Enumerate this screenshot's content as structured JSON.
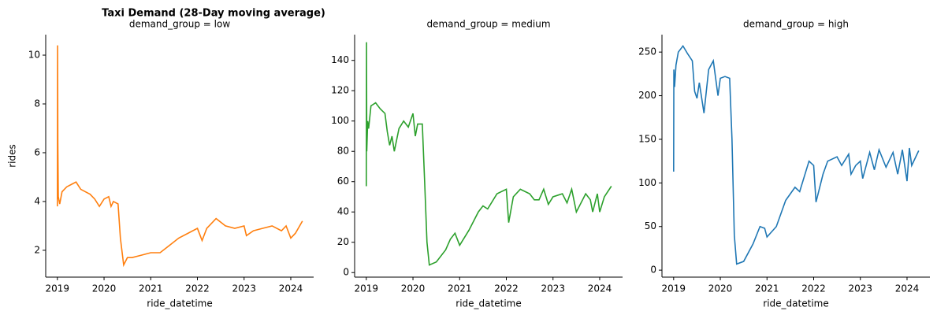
{
  "title": "Taxi Demand (28-Day moving average)",
  "chart_data": [
    {
      "type": "line",
      "title": "demand_group = low",
      "xlabel": "ride_datetime",
      "ylabel": "rides",
      "color": "#ff7f0e",
      "x": [
        2019.0,
        2019.005,
        2019.01,
        2019.02,
        2019.05,
        2019.1,
        2019.2,
        2019.3,
        2019.4,
        2019.5,
        2019.6,
        2019.7,
        2019.8,
        2019.9,
        2020.0,
        2020.1,
        2020.15,
        2020.2,
        2020.3,
        2020.35,
        2020.42,
        2020.5,
        2020.6,
        2020.8,
        2021.0,
        2021.2,
        2021.4,
        2021.6,
        2021.8,
        2022.0,
        2022.1,
        2022.2,
        2022.4,
        2022.6,
        2022.8,
        2023.0,
        2023.05,
        2023.2,
        2023.4,
        2023.6,
        2023.8,
        2023.9,
        2024.0,
        2024.1,
        2024.25
      ],
      "values": [
        3.8,
        10.4,
        6.4,
        4.2,
        3.9,
        4.4,
        4.6,
        4.7,
        4.8,
        4.5,
        4.4,
        4.3,
        4.1,
        3.8,
        4.1,
        4.2,
        3.8,
        4.0,
        3.9,
        2.5,
        1.4,
        1.7,
        1.7,
        1.8,
        1.9,
        1.9,
        2.2,
        2.5,
        2.7,
        2.9,
        2.4,
        2.9,
        3.3,
        3.0,
        2.9,
        3.0,
        2.6,
        2.8,
        2.9,
        3.0,
        2.8,
        3.0,
        2.5,
        2.7,
        3.2
      ],
      "xlim": [
        2018.75,
        2024.49
      ],
      "xticks": [
        2019,
        2020,
        2021,
        2022,
        2023,
        2024
      ],
      "ylim": [
        0.9,
        10.84
      ],
      "yticks": [
        2,
        4,
        6,
        8,
        10
      ]
    },
    {
      "type": "line",
      "title": "demand_group = medium",
      "xlabel": "ride_datetime",
      "color": "#2ca02c",
      "x": [
        2019.0,
        2019.005,
        2019.01,
        2019.03,
        2019.05,
        2019.1,
        2019.2,
        2019.3,
        2019.4,
        2019.45,
        2019.5,
        2019.55,
        2019.6,
        2019.7,
        2019.8,
        2019.9,
        2020.0,
        2020.05,
        2020.1,
        2020.2,
        2020.25,
        2020.3,
        2020.35,
        2020.5,
        2020.7,
        2020.8,
        2020.9,
        2021.0,
        2021.2,
        2021.4,
        2021.5,
        2021.6,
        2021.8,
        2022.0,
        2022.05,
        2022.15,
        2022.3,
        2022.5,
        2022.6,
        2022.7,
        2022.8,
        2022.9,
        2023.0,
        2023.2,
        2023.3,
        2023.4,
        2023.5,
        2023.7,
        2023.8,
        2023.85,
        2023.95,
        2024.0,
        2024.1,
        2024.25
      ],
      "values": [
        57,
        152,
        80,
        100,
        95,
        110,
        112,
        108,
        105,
        93,
        84,
        90,
        80,
        95,
        100,
        96,
        105,
        90,
        98,
        98,
        60,
        20,
        5,
        7,
        15,
        22,
        26,
        18,
        28,
        40,
        44,
        42,
        52,
        55,
        33,
        50,
        55,
        52,
        48,
        48,
        55,
        45,
        50,
        52,
        46,
        55,
        40,
        52,
        48,
        40,
        52,
        40,
        50,
        57
      ],
      "xlim": [
        2018.75,
        2024.49
      ],
      "xticks": [
        2019,
        2020,
        2021,
        2022,
        2023,
        2024
      ],
      "ylim": [
        -3,
        157
      ],
      "yticks": [
        0,
        20,
        40,
        60,
        80,
        100,
        120,
        140
      ]
    },
    {
      "type": "line",
      "title": "demand_group = high",
      "xlabel": "ride_datetime",
      "color": "#1f77b4",
      "x": [
        2019.0,
        2019.005,
        2019.02,
        2019.05,
        2019.1,
        2019.2,
        2019.3,
        2019.4,
        2019.45,
        2019.5,
        2019.55,
        2019.65,
        2019.75,
        2019.85,
        2019.95,
        2020.0,
        2020.1,
        2020.2,
        2020.25,
        2020.3,
        2020.35,
        2020.5,
        2020.7,
        2020.85,
        2020.95,
        2021.0,
        2021.2,
        2021.4,
        2021.6,
        2021.7,
        2021.9,
        2022.0,
        2022.05,
        2022.2,
        2022.3,
        2022.5,
        2022.6,
        2022.75,
        2022.8,
        2022.9,
        2023.0,
        2023.05,
        2023.2,
        2023.3,
        2023.4,
        2023.55,
        2023.7,
        2023.8,
        2023.9,
        2024.0,
        2024.05,
        2024.1,
        2024.25
      ],
      "values": [
        113,
        230,
        210,
        235,
        250,
        257,
        248,
        240,
        205,
        197,
        215,
        180,
        230,
        240,
        200,
        220,
        222,
        220,
        150,
        40,
        7,
        10,
        30,
        50,
        48,
        38,
        50,
        80,
        95,
        90,
        125,
        120,
        78,
        110,
        125,
        130,
        120,
        133,
        110,
        120,
        125,
        105,
        135,
        115,
        138,
        118,
        135,
        110,
        138,
        102,
        140,
        120,
        137
      ],
      "xlim": [
        2018.75,
        2024.49
      ],
      "xticks": [
        2019,
        2020,
        2021,
        2022,
        2023,
        2024
      ],
      "ylim": [
        -8,
        270
      ],
      "yticks": [
        0,
        50,
        100,
        150,
        200,
        250
      ]
    }
  ]
}
